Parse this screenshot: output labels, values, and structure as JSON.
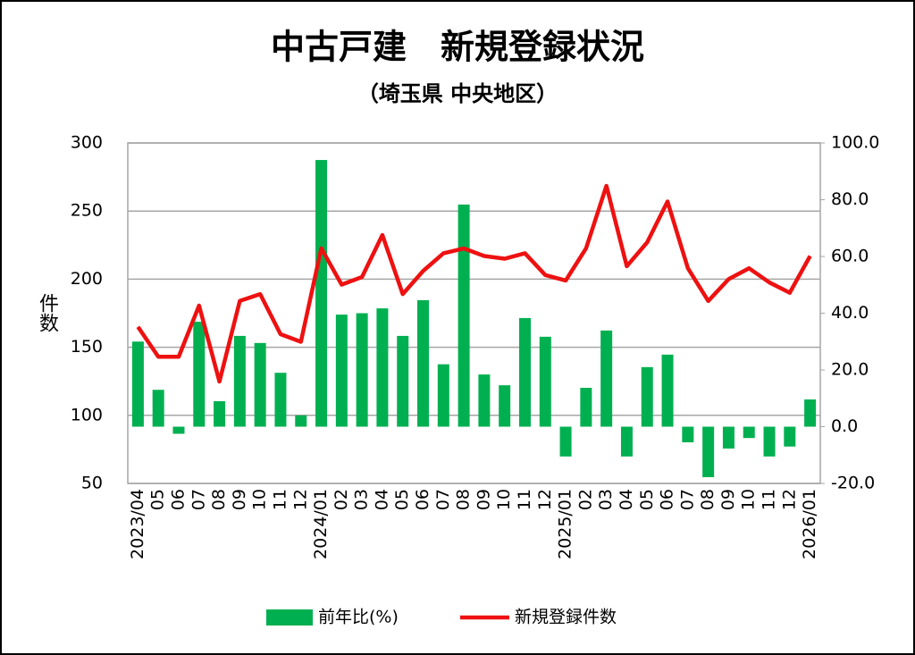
{
  "chart_data": {
    "type": "bar_line",
    "title": "中古戸建　新規登録状況",
    "subtitle": "（埼玉県 中央地区）",
    "y_label": "件数",
    "categories": [
      "2023/04",
      "05",
      "06",
      "07",
      "08",
      "09",
      "10",
      "11",
      "12",
      "2024/01",
      "02",
      "03",
      "04",
      "05",
      "06",
      "07",
      "08",
      "09",
      "10",
      "11",
      "12",
      "2025/01",
      "02",
      "03",
      "04",
      "05",
      "06",
      "07",
      "08",
      "09",
      "10",
      "11",
      "12",
      "2026/01"
    ],
    "series": [
      {
        "name": "前年比(%)",
        "type": "bar",
        "axis": "y2",
        "color": "#00b050",
        "values": [
          30,
          13,
          -2.5,
          37,
          9,
          32,
          29.5,
          19,
          4,
          94,
          39.5,
          40,
          41.7,
          32,
          44.6,
          22,
          78.3,
          18.4,
          14.6,
          38.3,
          31.7,
          -10.5,
          13.7,
          33.9,
          -10.5,
          21,
          25.4,
          -5.5,
          -17.8,
          -7.7,
          -4,
          -10.5,
          -7,
          9.6
        ]
      },
      {
        "name": "新規登録件数",
        "type": "line",
        "axis": "y",
        "color": "#ee1111",
        "values": [
          165,
          143,
          143,
          180.6,
          124.8,
          184,
          189,
          159.6,
          154,
          222.6,
          196,
          201.6,
          232.4,
          189,
          206,
          219,
          222.6,
          217,
          215,
          219,
          203,
          199,
          222.6,
          268.5,
          209.5,
          227,
          257,
          208,
          184,
          200,
          208,
          197.6,
          190,
          217
        ]
      }
    ],
    "ylim": [
      50,
      300
    ],
    "yticks": [
      50,
      100,
      150,
      200,
      250,
      300
    ],
    "y2lim": [
      -20,
      100
    ],
    "y2ticks": [
      {
        "value": -20,
        "label": "-20.0"
      },
      {
        "value": 0,
        "label": "0.0"
      },
      {
        "value": 20,
        "label": "20.0"
      },
      {
        "value": 40,
        "label": "40.0"
      },
      {
        "value": 60,
        "label": "60.0"
      },
      {
        "value": 80,
        "label": "80.0"
      },
      {
        "value": 100,
        "label": "100.0"
      }
    ],
    "grid": true,
    "legend": "bottom"
  }
}
